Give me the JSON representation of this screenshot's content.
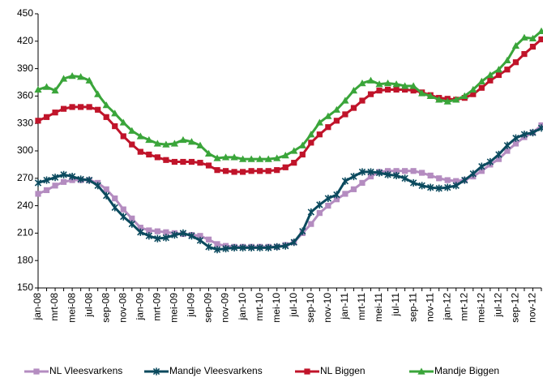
{
  "chart_data": {
    "type": "line",
    "categories": [
      "jan-08",
      null,
      "mrt-08",
      null,
      "mei-08",
      null,
      "jul-08",
      null,
      "sep-08",
      null,
      "nov-08",
      null,
      "jan-09",
      null,
      "mrt-09",
      null,
      "mei-09",
      null,
      "jul-09",
      null,
      "sep-09",
      null,
      "nov-09",
      null,
      "jan-10",
      null,
      "mrt-10",
      null,
      "mei-10",
      null,
      "jul-10",
      null,
      "sep-10",
      null,
      "nov-10",
      null,
      "jan-11",
      null,
      "mrt-11",
      null,
      "mei-11",
      null,
      "jul-11",
      null,
      "sep-11",
      null,
      "nov-11",
      null,
      "jan-12",
      null,
      "mrt-12",
      null,
      "mei-12",
      null,
      "jul-12",
      null,
      "sep-12",
      null,
      "nov-12",
      null
    ],
    "series": [
      {
        "name": "NL Vleesvarkens",
        "color": "#b48cc0",
        "marker": "square",
        "values": [
          253,
          257,
          262,
          266,
          268,
          268,
          268,
          265,
          258,
          248,
          236,
          226,
          216,
          213,
          212,
          211,
          210,
          209,
          208,
          207,
          203,
          198,
          196,
          195,
          195,
          195,
          195,
          195,
          195,
          197,
          200,
          210,
          220,
          232,
          240,
          247,
          253,
          258,
          265,
          272,
          277,
          278,
          278,
          278,
          278,
          276,
          273,
          270,
          268,
          267,
          268,
          272,
          278,
          285,
          291,
          300,
          308,
          315,
          320,
          328
        ]
      },
      {
        "name": "Mandje Vleesvarkens",
        "color": "#0b4a5e",
        "marker": "star",
        "values": [
          265,
          268,
          271,
          274,
          272,
          269,
          268,
          262,
          251,
          238,
          228,
          220,
          211,
          207,
          204,
          205,
          208,
          210,
          207,
          202,
          195,
          192,
          193,
          194,
          194,
          194,
          194,
          194,
          195,
          196,
          200,
          212,
          233,
          241,
          248,
          252,
          267,
          272,
          277,
          277,
          276,
          274,
          273,
          270,
          265,
          262,
          260,
          259,
          260,
          262,
          268,
          275,
          283,
          288,
          296,
          306,
          314,
          318,
          320,
          325
        ]
      },
      {
        "name": "NL Biggen",
        "color": "#c0142a",
        "marker": "square",
        "values": [
          333,
          337,
          342,
          346,
          348,
          348,
          348,
          345,
          337,
          327,
          316,
          307,
          299,
          296,
          293,
          290,
          288,
          288,
          288,
          287,
          284,
          279,
          278,
          277,
          277,
          278,
          278,
          278,
          279,
          282,
          287,
          296,
          309,
          318,
          326,
          333,
          340,
          347,
          355,
          362,
          366,
          367,
          367,
          367,
          366,
          364,
          361,
          358,
          357,
          356,
          358,
          362,
          369,
          377,
          383,
          389,
          397,
          406,
          414,
          422
        ]
      },
      {
        "name": "Mandje Biggen",
        "color": "#3aa53a",
        "marker": "triangle",
        "values": [
          367,
          370,
          366,
          379,
          382,
          381,
          377,
          362,
          350,
          341,
          331,
          322,
          316,
          312,
          308,
          307,
          308,
          312,
          310,
          306,
          297,
          292,
          293,
          293,
          291,
          291,
          291,
          291,
          292,
          295,
          300,
          306,
          318,
          331,
          338,
          345,
          355,
          366,
          374,
          377,
          373,
          374,
          373,
          371,
          371,
          363,
          360,
          356,
          354,
          356,
          360,
          367,
          376,
          383,
          389,
          399,
          415,
          424,
          423,
          431
        ]
      }
    ],
    "ylim": [
      150,
      450
    ],
    "yticks": [
      150,
      180,
      210,
      240,
      270,
      300,
      330,
      360,
      390,
      420,
      450
    ],
    "grid": false,
    "legend": "bottom"
  }
}
